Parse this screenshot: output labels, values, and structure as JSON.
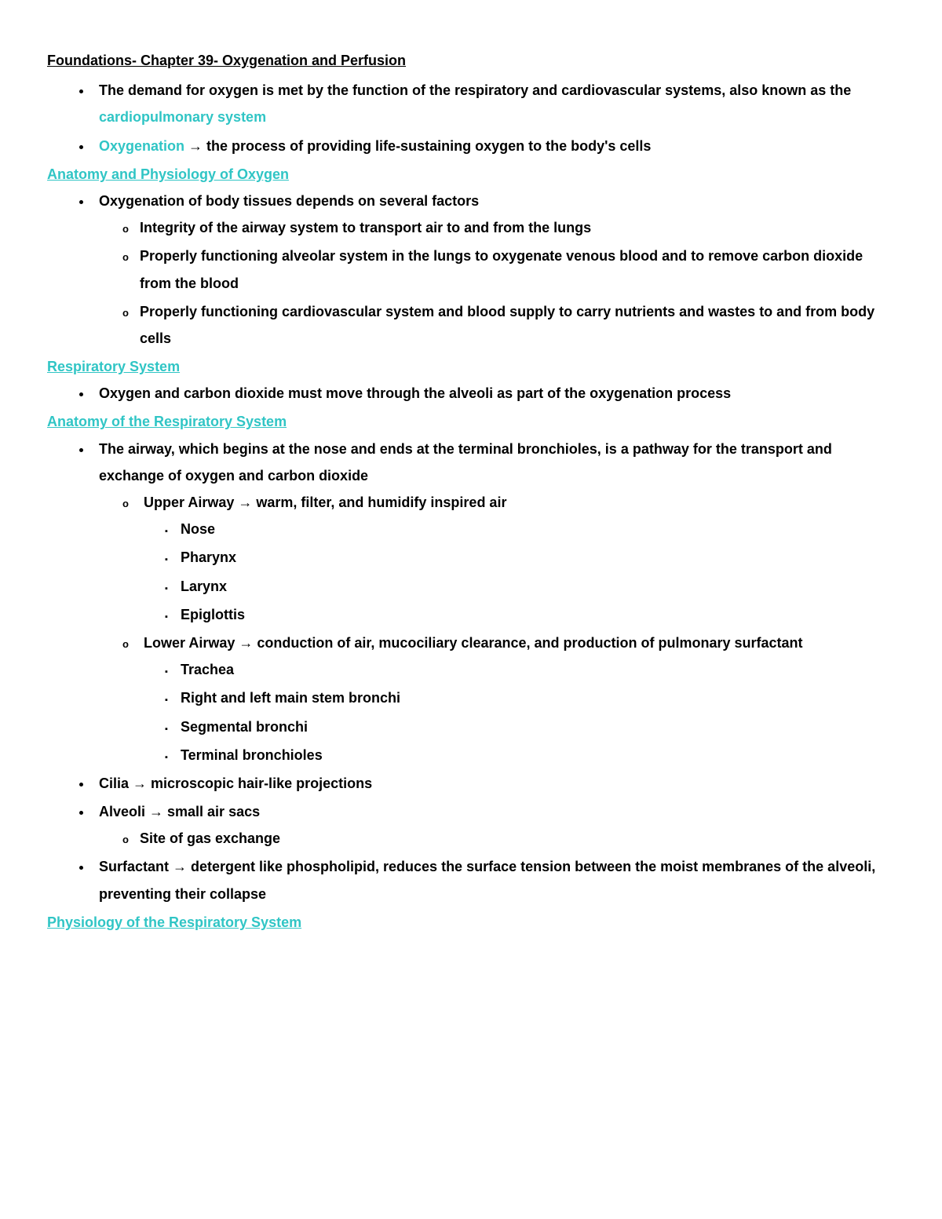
{
  "title": "Foundations- Chapter 39- Oxygenation and Perfusion",
  "colors": {
    "text": "#000000",
    "highlight": "#30c5c5",
    "background": "#ffffff"
  },
  "fonts": {
    "base_size": 18,
    "weight": 600
  },
  "intro": {
    "b1_pre": "The demand for oxygen is met by the function of the respiratory and cardiovascular systems, also known as the ",
    "b1_hl": "cardiopulmonary system",
    "b2_hl": "Oxygenation",
    "b2_rest": " → the process of providing life-sustaining oxygen to the body's cells"
  },
  "h1": "Anatomy and Physiology of Oxygen",
  "s1": {
    "b1": "Oxygenation of body tissues depends on several factors",
    "c1": "Integrity of the airway system to transport air to and from the lungs",
    "c2": "Properly functioning alveolar system in the lungs to oxygenate venous blood and to remove carbon dioxide from the blood",
    "c3": "Properly functioning cardiovascular system and blood supply to carry nutrients and wastes to and from body cells"
  },
  "h2": "Respiratory System",
  "s2": {
    "b1": "Oxygen and carbon dioxide must move through the alveoli as part of the oxygenation process"
  },
  "h3": "Anatomy of the Respiratory System",
  "s3": {
    "b1": "The airway, which begins at the nose and ends at the terminal bronchioles, is a pathway for the transport and exchange of oxygen and carbon dioxide",
    "upper": "Upper Airway → warm, filter, and humidify inspired air",
    "u1": "Nose",
    "u2": "Pharynx",
    "u3": "Larynx",
    "u4": "Epiglottis",
    "lower": "Lower Airway → conduction of air, mucociliary clearance, and production of pulmonary surfactant",
    "l1": "Trachea",
    "l2": "Right and left main stem bronchi",
    "l3": "Segmental bronchi",
    "l4": "Terminal bronchioles",
    "b2": "Cilia → microscopic hair-like projections",
    "b3": "Alveoli → small air sacs",
    "b3c1": "Site of gas exchange",
    "b4": "Surfactant → detergent like phospholipid, reduces the surface tension between the moist membranes of the alveoli, preventing their collapse"
  },
  "h4": "Physiology of the Respiratory System"
}
